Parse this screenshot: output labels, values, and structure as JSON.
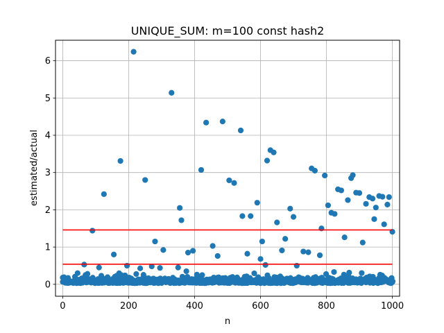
{
  "chart_data": {
    "type": "scatter",
    "title": "UNIQUE_SUM: m=100 const hash2",
    "xlabel": "n",
    "ylabel": "estimated/actual",
    "xlim": [
      -22,
      1022
    ],
    "ylim": [
      -0.32,
      6.55
    ],
    "xticks": [
      0,
      200,
      400,
      600,
      800,
      1000
    ],
    "xtick_labels": [
      "0",
      "200",
      "400",
      "600",
      "800",
      "1000"
    ],
    "yticks": [
      0,
      1,
      2,
      3,
      4,
      5,
      6
    ],
    "ytick_labels": [
      "0",
      "1",
      "2",
      "3",
      "4",
      "5",
      "6"
    ],
    "grid": true,
    "point_color": "#1f77b4",
    "line_color": "#ff0000",
    "hlines": [
      {
        "y": 1.46,
        "xmin": 0,
        "xmax": 1000
      },
      {
        "y": 0.54,
        "xmin": 0,
        "xmax": 1000
      }
    ],
    "outliers": {
      "x": [
        0,
        45,
        65,
        75,
        90,
        110,
        125,
        155,
        175,
        195,
        215,
        235,
        250,
        270,
        280,
        295,
        305,
        330,
        350,
        355,
        360,
        375,
        380,
        395,
        420,
        435,
        455,
        470,
        485,
        505,
        520,
        540,
        545,
        560,
        570,
        590,
        600,
        605,
        615,
        620,
        630,
        640,
        650,
        665,
        675,
        690,
        700,
        710,
        730,
        745,
        755,
        765,
        780,
        785,
        795,
        805,
        815,
        825,
        835,
        845,
        855,
        865,
        875,
        880,
        890,
        900,
        910,
        920,
        930,
        940,
        945,
        950,
        960,
        970,
        975,
        985,
        990,
        1000
      ],
      "y": [
        0.18,
        0.3,
        0.53,
        0.28,
        1.44,
        0.45,
        2.42,
        0.8,
        3.31,
        0.5,
        6.24,
        0.43,
        2.8,
        0.48,
        1.15,
        0.44,
        0.92,
        5.14,
        0.45,
        2.05,
        1.72,
        0.35,
        0.85,
        0.9,
        3.07,
        4.34,
        1.03,
        0.76,
        4.37,
        2.79,
        2.72,
        4.13,
        1.83,
        0.82,
        1.83,
        2.19,
        0.68,
        1.15,
        0.52,
        3.32,
        3.6,
        3.54,
        1.66,
        0.91,
        1.22,
        2.03,
        1.81,
        0.5,
        0.88,
        0.86,
        3.11,
        3.05,
        0.78,
        1.5,
        2.92,
        2.12,
        1.92,
        1.89,
        2.55,
        2.52,
        1.26,
        2.26,
        2.85,
        2.93,
        2.46,
        2.45,
        1.12,
        2.16,
        2.34,
        2.3,
        1.75,
        2.06,
        2.37,
        2.35,
        1.61,
        2.14,
        2.34,
        1.41
      ]
    }
  }
}
